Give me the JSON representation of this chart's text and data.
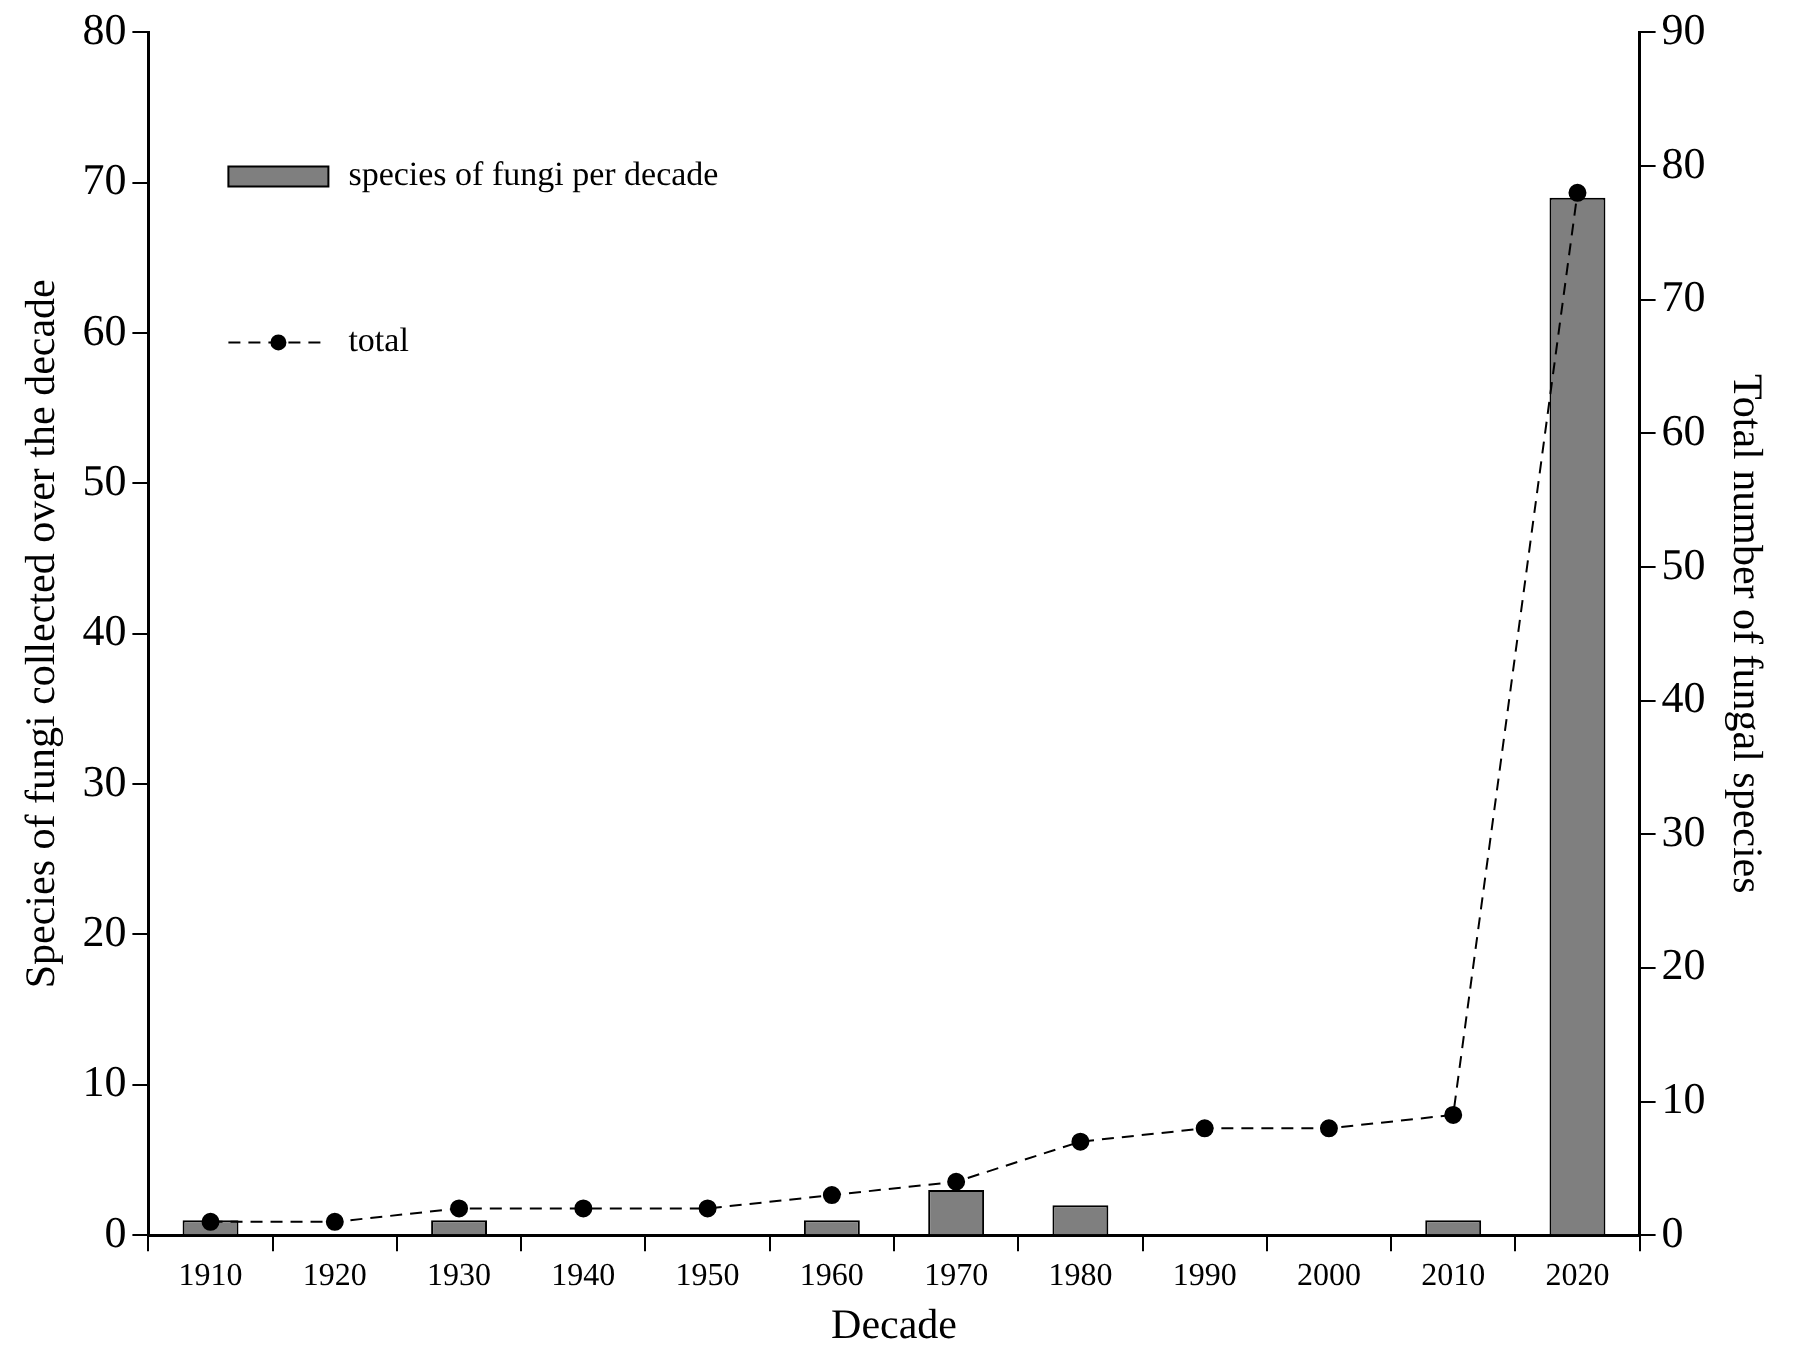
{
  "chart_data": {
    "type": "bar",
    "xlabel": "Decade",
    "ylabel": "Species of fungi collected over the decade",
    "y2label": "Total number of fungal species",
    "categories": [
      "1910",
      "1920",
      "1930",
      "1940",
      "1950",
      "1960",
      "1970",
      "1980",
      "1990",
      "2000",
      "2010",
      "2020"
    ],
    "series": [
      {
        "name": "species of fungi per decade",
        "color": "#7f7f7f",
        "values": [
          1,
          0,
          1,
          0,
          0,
          1,
          3,
          2,
          0,
          0,
          1,
          69
        ]
      },
      {
        "name": "total",
        "type": "line",
        "axis": "y2",
        "color": "#000000",
        "marker": "circle",
        "line_style": "dashed",
        "values": [
          1,
          1,
          2,
          2,
          2,
          3,
          4,
          7,
          8,
          8,
          9,
          78
        ]
      }
    ],
    "ylim": [
      0,
      80
    ],
    "yticks": [
      0,
      10,
      20,
      30,
      40,
      50,
      60,
      70,
      80
    ],
    "y2lim": [
      0,
      90
    ],
    "y2ticks": [
      0,
      10,
      20,
      30,
      40,
      50,
      60,
      70,
      80,
      90
    ],
    "grid": false,
    "legend": "top left"
  }
}
